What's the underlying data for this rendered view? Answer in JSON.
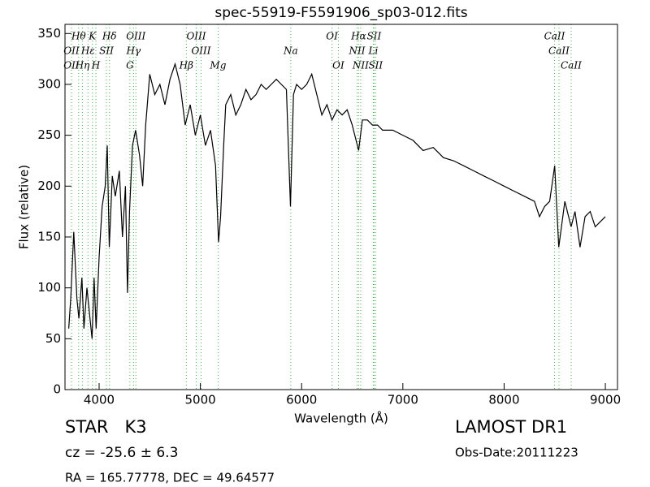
{
  "chart_data": {
    "type": "line",
    "title": "spec-55919-F5591906_sp03-012.fits",
    "x_label": "Wavelength (Å)",
    "y_label": "Flux (relative)",
    "xlim": [
      3663,
      9120
    ],
    "ylim": [
      0,
      359
    ],
    "xticks": [
      4000,
      5000,
      6000,
      7000,
      8000,
      9000
    ],
    "yticks": [
      0,
      50,
      100,
      150,
      200,
      250,
      300,
      350
    ],
    "series": [
      {
        "color": "#000000",
        "x": [
          3700,
          3720,
          3750,
          3780,
          3800,
          3830,
          3850,
          3880,
          3900,
          3930,
          3950,
          3970,
          4000,
          4030,
          4060,
          4080,
          4100,
          4130,
          4160,
          4200,
          4230,
          4260,
          4280,
          4300,
          4330,
          4360,
          4400,
          4430,
          4460,
          4500,
          4550,
          4600,
          4650,
          4700,
          4750,
          4800,
          4850,
          4900,
          4950,
          5000,
          5050,
          5100,
          5150,
          5180,
          5200,
          5230,
          5250,
          5300,
          5350,
          5400,
          5450,
          5500,
          5550,
          5600,
          5650,
          5700,
          5750,
          5800,
          5850,
          5890,
          5920,
          5950,
          6000,
          6050,
          6100,
          6150,
          6200,
          6250,
          6300,
          6350,
          6400,
          6450,
          6500,
          6563,
          6600,
          6650,
          6700,
          6750,
          6800,
          6900,
          7000,
          7100,
          7200,
          7300,
          7400,
          7500,
          7600,
          7700,
          7800,
          7900,
          8000,
          8100,
          8200,
          8300,
          8350,
          8400,
          8450,
          8500,
          8540,
          8600,
          8662,
          8700,
          8750,
          8800,
          8850,
          8900,
          8950,
          9000
        ],
        "values": [
          60,
          90,
          155,
          90,
          70,
          110,
          60,
          100,
          80,
          50,
          110,
          60,
          130,
          180,
          200,
          240,
          140,
          210,
          190,
          215,
          150,
          200,
          95,
          175,
          240,
          255,
          230,
          200,
          260,
          310,
          290,
          300,
          280,
          305,
          320,
          300,
          260,
          280,
          250,
          270,
          240,
          255,
          220,
          145,
          170,
          240,
          280,
          290,
          270,
          280,
          295,
          285,
          290,
          300,
          295,
          300,
          305,
          300,
          295,
          180,
          290,
          300,
          295,
          300,
          310,
          290,
          270,
          280,
          265,
          275,
          270,
          275,
          260,
          235,
          265,
          265,
          260,
          260,
          255,
          255,
          250,
          245,
          235,
          238,
          228,
          225,
          220,
          215,
          210,
          205,
          200,
          195,
          190,
          185,
          170,
          180,
          185,
          220,
          140,
          185,
          160,
          175,
          140,
          170,
          175,
          160,
          165,
          170
        ]
      }
    ],
    "line_labels": [
      [
        {
          "label": "Hθ",
          "x": 3798
        },
        {
          "label": "K",
          "x": 3934
        },
        {
          "label": "Hδ",
          "x": 4102
        },
        {
          "label": "OIII",
          "x": 4363
        },
        {
          "label": "OIII",
          "x": 4959
        },
        {
          "label": "OI",
          "x": 6300
        },
        {
          "label": "Hα",
          "x": 6563
        },
        {
          "label": "SII",
          "x": 6716
        },
        {
          "label": "CaII",
          "x": 8498
        }
      ],
      [
        {
          "label": "OII",
          "x": 3727
        },
        {
          "label": "Hε",
          "x": 3890
        },
        {
          "label": "SII",
          "x": 4072
        },
        {
          "label": "Hγ",
          "x": 4340
        },
        {
          "label": "OIII",
          "x": 5007
        },
        {
          "label": "Na",
          "x": 5893
        },
        {
          "label": "NII",
          "x": 6548
        },
        {
          "label": "Li",
          "x": 6708
        },
        {
          "label": "CaII",
          "x": 8542
        }
      ],
      [
        {
          "label": "OII",
          "x": 3727
        },
        {
          "label": "Hη",
          "x": 3835
        },
        {
          "label": "H",
          "x": 3968
        },
        {
          "label": "G",
          "x": 4304
        },
        {
          "label": "Hβ",
          "x": 4861
        },
        {
          "label": "Mg",
          "x": 5175
        },
        {
          "label": "OI",
          "x": 6363
        },
        {
          "label": "NII",
          "x": 6583
        },
        {
          "label": "SII",
          "x": 6731
        },
        {
          "label": "CaII",
          "x": 8662
        }
      ]
    ],
    "object_class": "STAR   K3",
    "redshift": "cz = -25.6 ± 6.3",
    "coordinates": "RA = 165.77778, DEC = 49.64577",
    "survey": "LAMOST DR1",
    "obs_date": "Obs-Date:20111223"
  }
}
